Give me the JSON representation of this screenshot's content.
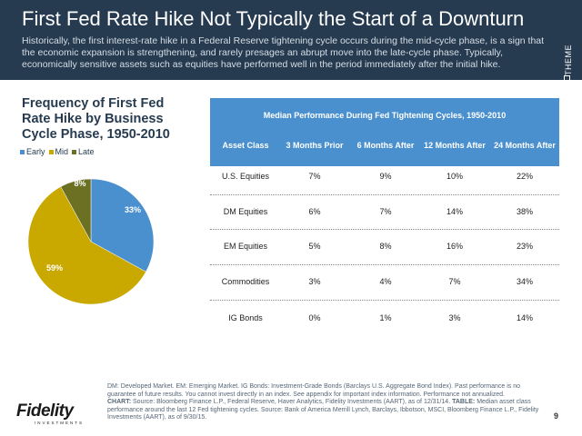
{
  "header": {
    "title": "First Fed Rate Hike Not Typically the Start of a Downturn",
    "subtitle": "Historically, the first interest-rate hike in a Federal Reserve tightening cycle occurs during the mid-cycle phase, is a sign that the economic expansion is strengthening, and rarely presages an abrupt move into the late-cycle phase. Typically, economically sensitive assets such as equities have performed well in the period immediately after the initial hike.",
    "theme_label": "THEME"
  },
  "chart_data": [
    {
      "type": "pie",
      "title": "Frequency of First Fed Rate Hike by Business Cycle Phase, 1950-2010",
      "categories": [
        "Early",
        "Mid",
        "Late"
      ],
      "values": [
        33,
        59,
        8
      ],
      "value_labels": [
        "33%",
        "59%",
        "8%"
      ],
      "colors": [
        "#4a90cf",
        "#c9a800",
        "#6b7023"
      ],
      "legend": "top-left"
    },
    {
      "type": "table",
      "title": "Median Performance During Fed Tightening Cycles, 1950-2010",
      "columns": [
        "Asset Class",
        "3 Months Prior",
        "6 Months After",
        "12 Months After",
        "24 Months After"
      ],
      "rows": [
        [
          "U.S. Equities",
          "7%",
          "9%",
          "10%",
          "22%"
        ],
        [
          "DM Equities",
          "6%",
          "7%",
          "14%",
          "38%"
        ],
        [
          "EM Equities",
          "5%",
          "8%",
          "16%",
          "23%"
        ],
        [
          "Commodities",
          "3%",
          "4%",
          "7%",
          "34%"
        ],
        [
          "IG Bonds",
          "0%",
          "1%",
          "3%",
          "14%"
        ]
      ]
    }
  ],
  "footnote": {
    "p1": "DM: Developed Market. EM: Emerging Market. IG Bonds: Investment-Grade Bonds (Barclays U.S. Aggregate Bond Index). Past performance is no guarantee of future results. You cannot invest directly in an index. See appendix for important index information. Performance not annualized.",
    "chart_label": "CHART:",
    "chart_text": "Source: Bloomberg Finance L.P., Federal Reserve, Haver Analytics, Fidelity Investments (AART), as of 12/31/14.",
    "table_label": "TABLE:",
    "table_text": "Median asset class performance around the last 12 Fed tightening cycles. Source: Bank of America Merrill Lynch, Barclays, Ibbotson, MSCI, Bloomberg Finance L.P., Fidelity Investments (AART), as of 9/30/15."
  },
  "logo": {
    "name": "Fidelity",
    "tagline": "INVESTMENTS"
  },
  "page_number": "9"
}
